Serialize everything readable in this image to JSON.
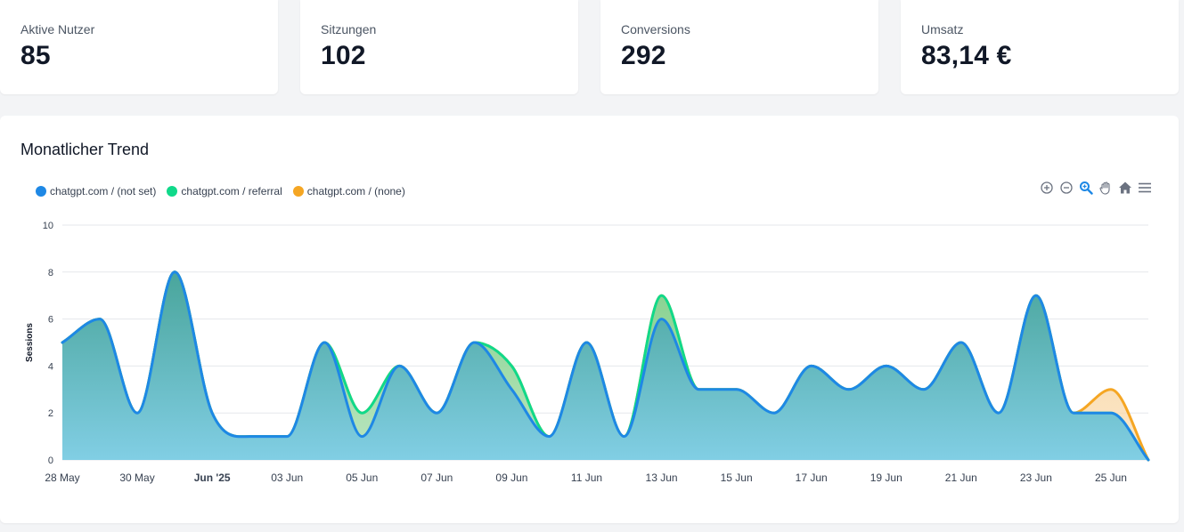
{
  "kpis": [
    {
      "label": "Aktive Nutzer",
      "value": "85"
    },
    {
      "label": "Sitzungen",
      "value": "102"
    },
    {
      "label": "Conversions",
      "value": "292"
    },
    {
      "label": "Umsatz",
      "value": "83,14 €"
    }
  ],
  "chart_title": "Monatlicher Trend",
  "toolbar": {
    "zoom_in": "zoom-in-icon",
    "zoom_out": "zoom-out-icon",
    "selection_zoom": "magnifier-icon",
    "pan": "hand-icon",
    "reset": "home-icon",
    "menu": "hamburger-menu-icon"
  },
  "chart_data": {
    "type": "area",
    "stacked": true,
    "title": "Monatlicher Trend",
    "xlabel": "",
    "ylabel": "Sessions",
    "ylim": [
      0,
      10
    ],
    "yticks": [
      "0",
      "2",
      "4",
      "6",
      "8",
      "10"
    ],
    "grid": true,
    "legend_position": "top-left",
    "x_tick_labels": [
      "28 May",
      "30 May",
      "Jun '25",
      "03 Jun",
      "05 Jun",
      "07 Jun",
      "09 Jun",
      "11 Jun",
      "13 Jun",
      "15 Jun",
      "17 Jun",
      "19 Jun",
      "21 Jun",
      "23 Jun",
      "25 Jun"
    ],
    "x": [
      "2025-05-28",
      "2025-05-29",
      "2025-05-30",
      "2025-05-31",
      "2025-06-01",
      "2025-06-02",
      "2025-06-03",
      "2025-06-04",
      "2025-06-05",
      "2025-06-06",
      "2025-06-07",
      "2025-06-08",
      "2025-06-09",
      "2025-06-10",
      "2025-06-11",
      "2025-06-12",
      "2025-06-13",
      "2025-06-14",
      "2025-06-15",
      "2025-06-16",
      "2025-06-17",
      "2025-06-18",
      "2025-06-19",
      "2025-06-20",
      "2025-06-21",
      "2025-06-22",
      "2025-06-23",
      "2025-06-24",
      "2025-06-25",
      "2025-06-26"
    ],
    "series": [
      {
        "name": "chatgpt.com / (not set)",
        "color": "#1e88e5",
        "values": [
          5,
          6,
          2,
          8,
          2,
          1,
          1,
          5,
          1,
          4,
          2,
          5,
          3,
          1,
          5,
          1,
          6,
          3,
          3,
          2,
          4,
          3,
          4,
          3,
          5,
          2,
          7,
          2,
          2,
          0
        ]
      },
      {
        "name": "chatgpt.com / referral",
        "color": "#10d98a",
        "values": [
          0,
          0,
          0,
          0,
          0,
          0,
          0,
          0,
          1,
          0,
          0,
          0,
          1,
          0,
          0,
          0,
          1,
          0,
          0,
          0,
          0,
          0,
          0,
          0,
          0,
          0,
          0,
          0,
          0,
          0
        ]
      },
      {
        "name": "chatgpt.com / (none)",
        "color": "#f5a623",
        "values": [
          0,
          0,
          0,
          0,
          0,
          0,
          0,
          0,
          0,
          0,
          0,
          0,
          0,
          0,
          0,
          0,
          0,
          0,
          0,
          0,
          0,
          0,
          0,
          0,
          0,
          0,
          0,
          0,
          1,
          0
        ]
      }
    ]
  }
}
